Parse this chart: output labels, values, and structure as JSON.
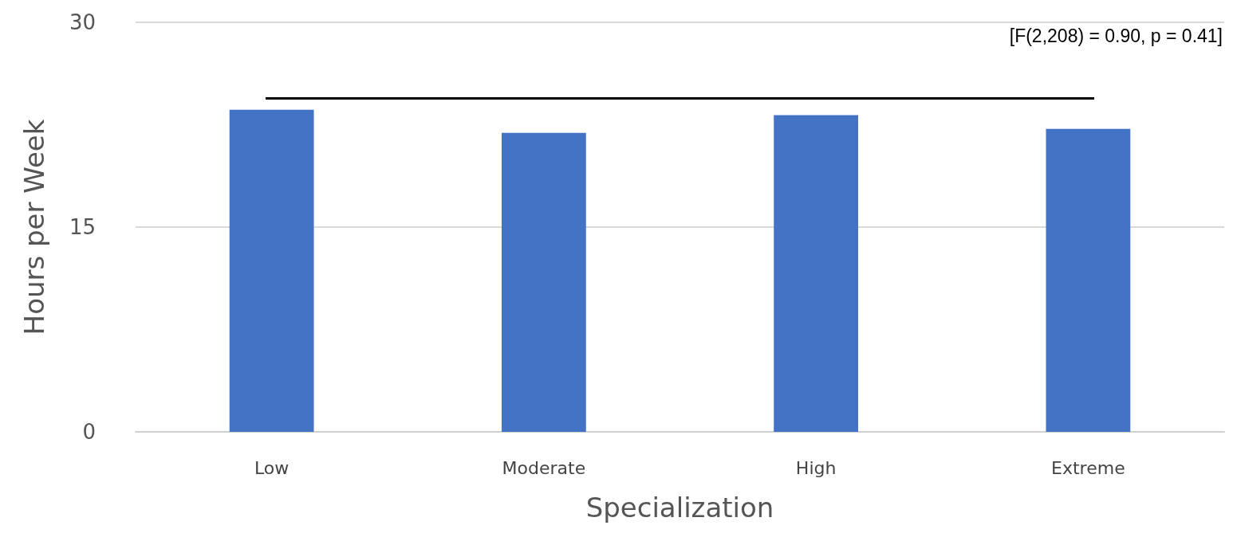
{
  "chart_data": {
    "type": "bar",
    "xlabel": "Specialization",
    "ylabel": "Hours per Week",
    "categories": [
      "Low",
      "Moderate",
      "High",
      "Extreme"
    ],
    "values": [
      23.6,
      21.9,
      23.2,
      22.2
    ],
    "color": "#4472c4",
    "ylim": [
      0,
      30
    ],
    "yticks": [
      0,
      15,
      30
    ],
    "grid": "y",
    "annotations": [
      "[F(2,208) = 0.90, p = 0.41]"
    ]
  }
}
